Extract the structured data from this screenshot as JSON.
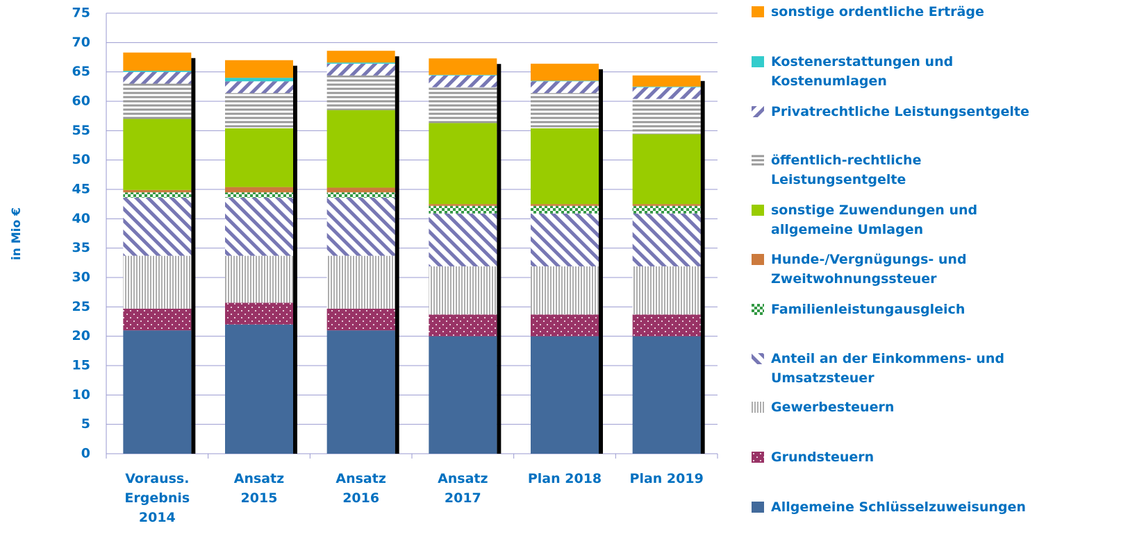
{
  "chart_data": {
    "type": "stacked_bar",
    "y_label": "in Mio €",
    "categories": [
      "Vorauss. Ergebnis 2014",
      "Ansatz 2015",
      "Ansatz 2016",
      "Ansatz 2017",
      "Plan 2018",
      "Plan 2019"
    ],
    "ylim": [
      0,
      75
    ],
    "yticks": [
      0,
      5,
      10,
      15,
      20,
      25,
      30,
      35,
      40,
      45,
      50,
      55,
      60,
      65,
      70,
      75
    ],
    "grid": true,
    "legend": "right",
    "series": [
      {
        "name": "Allgemeine Schlüsselzuweisungen",
        "color": "#426a9b",
        "values": [
          21.0,
          22.0,
          21.0,
          20.0,
          20.0,
          20.0
        ]
      },
      {
        "name": "Grundsteuern",
        "color": "#993366",
        "values": [
          3.7,
          3.7,
          3.7,
          3.7,
          3.7,
          3.7
        ]
      },
      {
        "name": "Gewerbesteuern",
        "color": "#999999",
        "values": [
          9.0,
          8.0,
          9.0,
          8.2,
          8.2,
          8.2
        ]
      },
      {
        "name": "Anteil an der Einkommens- und Umsatzsteuer",
        "color": "#7777b4",
        "values": [
          9.9,
          9.9,
          9.9,
          9.0,
          9.0,
          9.0
        ]
      },
      {
        "name": "Familienleistungausgleich",
        "color": "#339944",
        "values": [
          0.9,
          0.9,
          0.9,
          1.3,
          1.3,
          1.3
        ]
      },
      {
        "name": "Hunde-/Vergnügungs- und Zweitwohnungssteuer",
        "color": "#cc7a3d",
        "values": [
          0.4,
          0.9,
          0.8,
          0.3,
          0.3,
          0.3
        ]
      },
      {
        "name": "sonstige Zuwendungen und allgemeine Umlagen",
        "color": "#99cc00",
        "values": [
          12.1,
          10.0,
          13.2,
          13.8,
          12.9,
          11.9
        ]
      },
      {
        "name": "öffentlich-rechtliche Leistungsentgelte",
        "color": "#999999",
        "values": [
          6.0,
          6.0,
          5.9,
          6.1,
          6.0,
          6.0
        ]
      },
      {
        "name": "Privatrechtliche Leistungsentgelte",
        "color": "#7777b4",
        "values": [
          2.0,
          2.0,
          2.0,
          2.0,
          2.0,
          2.0
        ]
      },
      {
        "name": "Kostenerstattungen und Kostenumlagen",
        "color": "#33cccc",
        "values": [
          0.2,
          0.6,
          0.2,
          0.1,
          0.1,
          0.1
        ]
      },
      {
        "name": "sonstige ordentliche Erträge",
        "color": "#ff9900",
        "values": [
          3.1,
          3.0,
          2.0,
          2.8,
          2.9,
          1.9
        ]
      }
    ]
  }
}
